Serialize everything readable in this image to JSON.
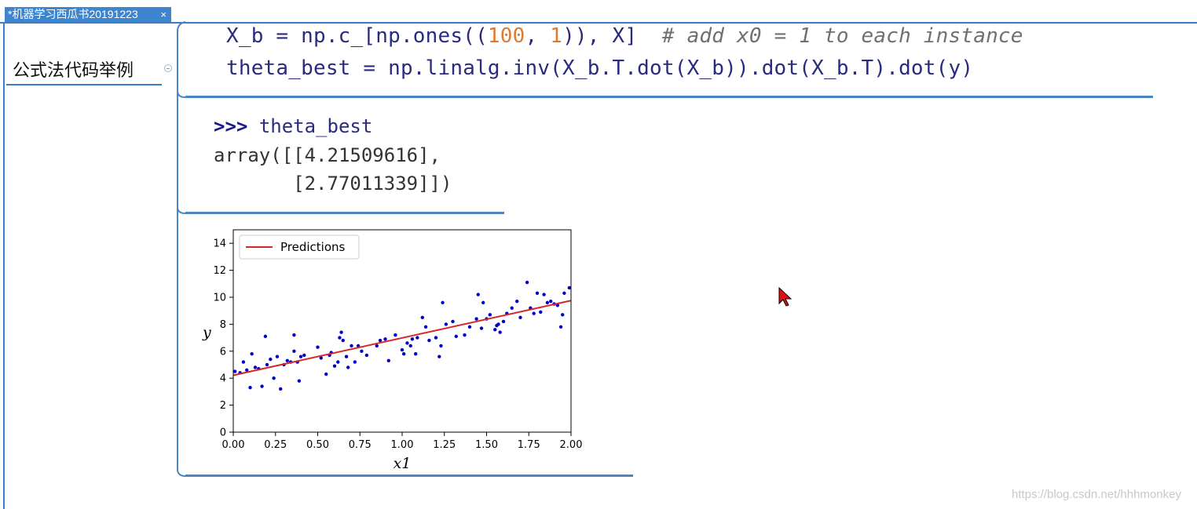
{
  "tab": {
    "title": "*机器学习西瓜书20191223",
    "close": "×"
  },
  "node": {
    "label": "公式法代码举例"
  },
  "code": {
    "line1": {
      "a": "X_b = np.c_[np.ones((",
      "n1": "100",
      "b": ", ",
      "n2": "1",
      "c": ")), X]  ",
      "comment": "# add x0 = 1 to each instance"
    },
    "line2": "theta_best = np.linalg.inv(X_b.T.dot(X_b)).dot(X_b.T).dot(y)"
  },
  "output": {
    "prompt": ">>>",
    "var": "theta_best",
    "line2": "array([[4.21509616],",
    "line3": "       [2.77011339]])"
  },
  "chart_data": {
    "type": "scatter",
    "legend": {
      "label": "Predictions",
      "placement": "top-left"
    },
    "xlabel": "x1",
    "ylabel": "y",
    "xlim": [
      0,
      2
    ],
    "ylim": [
      0,
      15
    ],
    "xticks": [
      "0.00",
      "0.25",
      "0.50",
      "0.75",
      "1.00",
      "1.25",
      "1.50",
      "1.75",
      "2.00"
    ],
    "yticks": [
      "0",
      "2",
      "4",
      "6",
      "8",
      "10",
      "12",
      "14"
    ],
    "line": {
      "name": "Predictions",
      "x": [
        0,
        2
      ],
      "y": [
        4.215,
        9.755
      ],
      "color": "#d62728"
    },
    "points_color": "#0000cc",
    "points": [
      [
        0.01,
        4.5
      ],
      [
        0.04,
        4.4
      ],
      [
        0.06,
        5.2
      ],
      [
        0.08,
        4.6
      ],
      [
        0.1,
        3.3
      ],
      [
        0.11,
        5.8
      ],
      [
        0.13,
        4.8
      ],
      [
        0.15,
        4.7
      ],
      [
        0.17,
        3.4
      ],
      [
        0.19,
        7.1
      ],
      [
        0.2,
        5.0
      ],
      [
        0.22,
        5.4
      ],
      [
        0.24,
        4.0
      ],
      [
        0.26,
        5.6
      ],
      [
        0.28,
        3.2
      ],
      [
        0.3,
        5.0
      ],
      [
        0.32,
        5.3
      ],
      [
        0.34,
        5.2
      ],
      [
        0.36,
        6.0
      ],
      [
        0.36,
        7.2
      ],
      [
        0.38,
        5.2
      ],
      [
        0.39,
        3.8
      ],
      [
        0.4,
        5.6
      ],
      [
        0.42,
        5.7
      ],
      [
        0.5,
        6.3
      ],
      [
        0.52,
        5.5
      ],
      [
        0.55,
        4.3
      ],
      [
        0.57,
        5.7
      ],
      [
        0.58,
        5.9
      ],
      [
        0.6,
        4.9
      ],
      [
        0.62,
        5.2
      ],
      [
        0.63,
        7.0
      ],
      [
        0.64,
        7.4
      ],
      [
        0.65,
        6.8
      ],
      [
        0.67,
        5.6
      ],
      [
        0.68,
        4.8
      ],
      [
        0.7,
        6.4
      ],
      [
        0.72,
        5.2
      ],
      [
        0.74,
        6.4
      ],
      [
        0.76,
        6.0
      ],
      [
        0.79,
        5.7
      ],
      [
        0.85,
        6.4
      ],
      [
        0.87,
        6.8
      ],
      [
        0.9,
        6.9
      ],
      [
        0.92,
        5.3
      ],
      [
        0.96,
        7.2
      ],
      [
        1.0,
        6.1
      ],
      [
        1.01,
        5.8
      ],
      [
        1.03,
        6.6
      ],
      [
        1.05,
        6.4
      ],
      [
        1.06,
        6.9
      ],
      [
        1.08,
        5.8
      ],
      [
        1.09,
        7.0
      ],
      [
        1.12,
        8.5
      ],
      [
        1.14,
        7.8
      ],
      [
        1.16,
        6.8
      ],
      [
        1.2,
        7.0
      ],
      [
        1.22,
        5.6
      ],
      [
        1.23,
        6.4
      ],
      [
        1.24,
        9.6
      ],
      [
        1.26,
        8.0
      ],
      [
        1.3,
        8.2
      ],
      [
        1.32,
        7.1
      ],
      [
        1.37,
        7.2
      ],
      [
        1.4,
        7.8
      ],
      [
        1.44,
        8.4
      ],
      [
        1.45,
        10.2
      ],
      [
        1.47,
        7.7
      ],
      [
        1.48,
        9.6
      ],
      [
        1.5,
        8.4
      ],
      [
        1.52,
        8.7
      ],
      [
        1.55,
        7.6
      ],
      [
        1.56,
        7.9
      ],
      [
        1.57,
        8.0
      ],
      [
        1.58,
        7.4
      ],
      [
        1.6,
        8.2
      ],
      [
        1.62,
        8.8
      ],
      [
        1.65,
        9.2
      ],
      [
        1.68,
        9.7
      ],
      [
        1.7,
        8.5
      ],
      [
        1.74,
        11.1
      ],
      [
        1.76,
        9.2
      ],
      [
        1.78,
        8.8
      ],
      [
        1.8,
        10.3
      ],
      [
        1.82,
        8.9
      ],
      [
        1.84,
        10.2
      ],
      [
        1.86,
        9.6
      ],
      [
        1.88,
        9.7
      ],
      [
        1.9,
        9.5
      ],
      [
        1.92,
        9.4
      ],
      [
        1.94,
        7.8
      ],
      [
        1.95,
        8.7
      ],
      [
        1.96,
        10.3
      ],
      [
        1.99,
        10.7
      ]
    ]
  },
  "watermark": "https://blog.csdn.net/hhhmonkey"
}
